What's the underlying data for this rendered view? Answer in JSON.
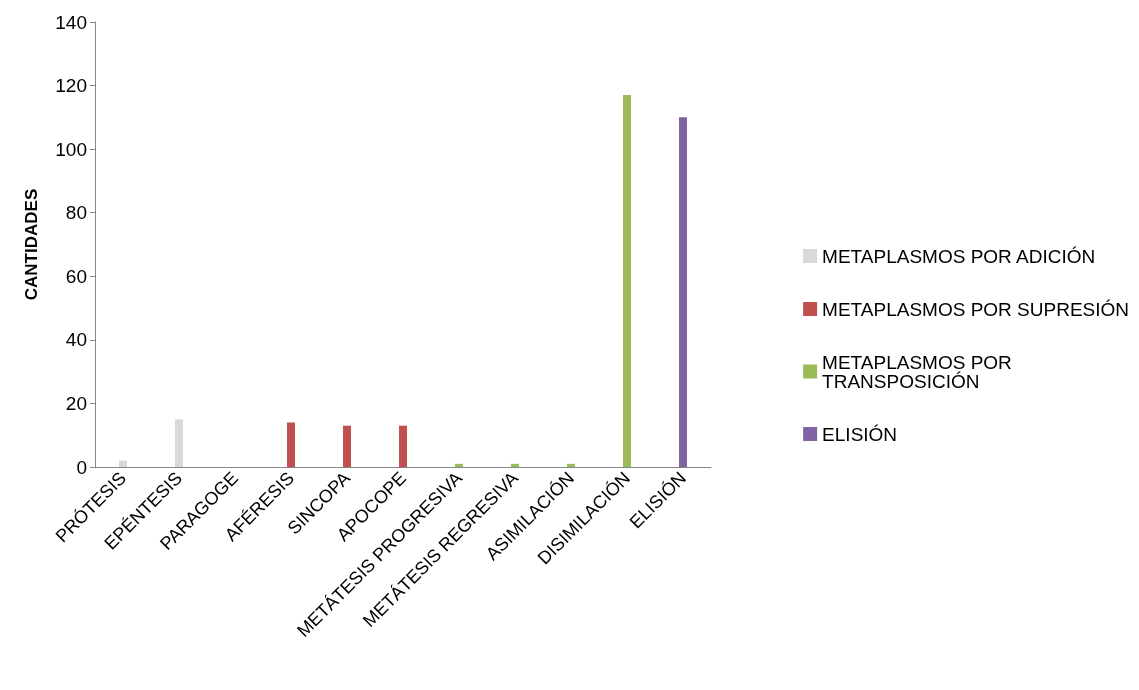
{
  "chart_data": {
    "type": "bar",
    "ylabel": "CANTIDADES",
    "categories": [
      "PRÓTESIS",
      "EPÉNTESIS",
      "PARAGOGE",
      "AFÉRESIS",
      "SINCOPA",
      "APOCOPE",
      "METÁTESIS PROGRESIVA",
      "METÁTESIS REGRESIVA",
      "ASIMILACIÓN",
      "DISIMILACIÓN",
      "ELISIÓN"
    ],
    "series": [
      {
        "name": "METAPLASMOS POR ADICIÓN",
        "color": "#d9d9d9",
        "values": [
          2,
          15,
          0,
          null,
          null,
          null,
          null,
          null,
          null,
          null,
          null
        ]
      },
      {
        "name": "METAPLASMOS POR SUPRESIÓN",
        "color": "#c0504d",
        "values": [
          null,
          null,
          null,
          14,
          13,
          13,
          null,
          null,
          null,
          null,
          null
        ]
      },
      {
        "name": "METAPLASMOS POR TRANSPOSICIÓN",
        "color": "#9bbb59",
        "values": [
          null,
          null,
          null,
          null,
          null,
          null,
          1,
          1,
          1,
          117,
          null
        ]
      },
      {
        "name": "ELISIÓN",
        "color": "#8064a2",
        "values": [
          null,
          null,
          null,
          null,
          null,
          null,
          null,
          null,
          null,
          null,
          110
        ]
      }
    ],
    "ylim": [
      0,
      140
    ],
    "yticks": [
      0,
      20,
      40,
      60,
      80,
      100,
      120,
      140
    ],
    "grid": false,
    "legend": "right"
  }
}
